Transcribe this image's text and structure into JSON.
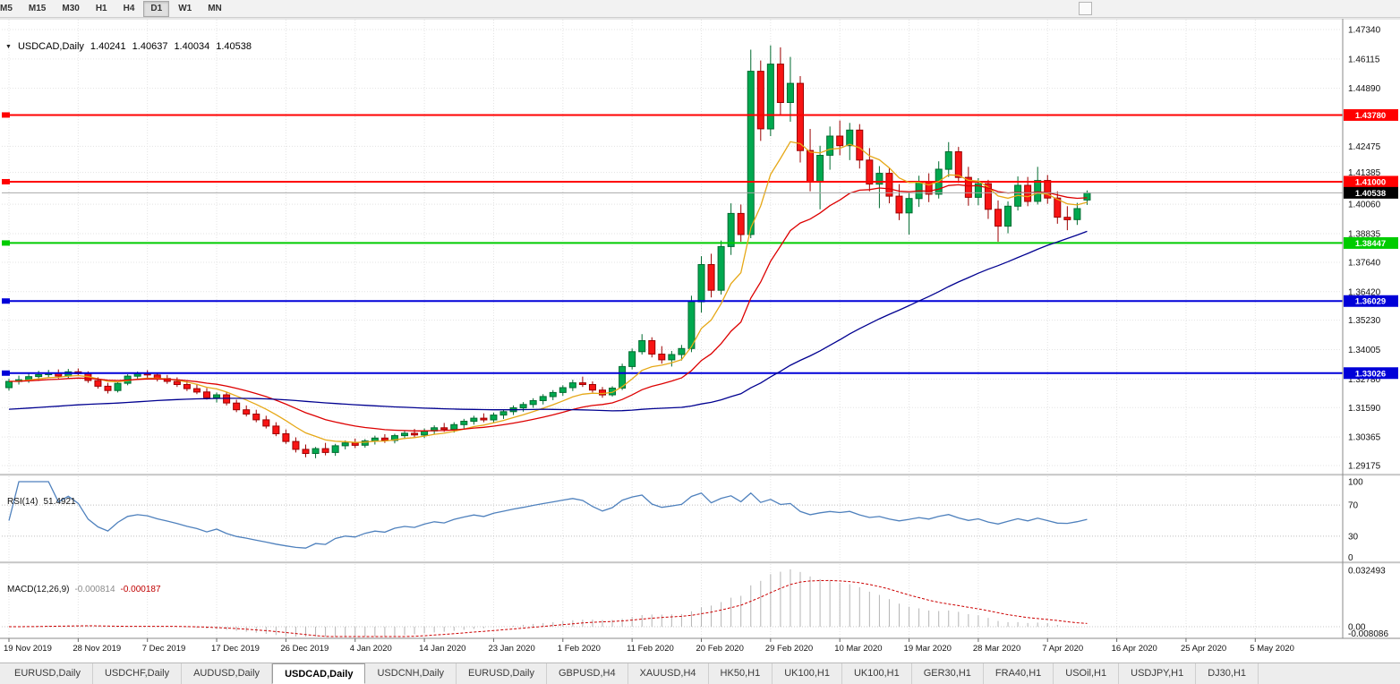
{
  "toolbar": {
    "timeframes": [
      "M5",
      "M15",
      "M30",
      "H1",
      "H4",
      "D1",
      "W1",
      "MN"
    ],
    "active_timeframe": "D1"
  },
  "chart_header": {
    "symbol": "USDCAD,Daily",
    "open": "1.40241",
    "high": "1.40637",
    "low": "1.40034",
    "close": "1.40538"
  },
  "chart_data": {
    "type": "candlestick",
    "symbol": "USDCAD",
    "timeframe": "Daily",
    "x_labels": [
      "19 Nov 2019",
      "28 Nov 2019",
      "7 Dec 2019",
      "17 Dec 2019",
      "26 Dec 2019",
      "4 Jan 2020",
      "14 Jan 2020",
      "23 Jan 2020",
      "1 Feb 2020",
      "11 Feb 2020",
      "20 Feb 2020",
      "29 Feb 2020",
      "10 Mar 2020",
      "19 Mar 2020",
      "28 Mar 2020",
      "7 Apr 2020",
      "16 Apr 2020",
      "25 Apr 2020",
      "5 May 2020"
    ],
    "y_axis_labels": [
      "1.47340",
      "1.46115",
      "1.44890",
      "1.42475",
      "1.41385",
      "1.40060",
      "1.38835",
      "1.37640",
      "1.36420",
      "1.35230",
      "1.34005",
      "1.32780",
      "1.31590",
      "1.30365",
      "1.29175"
    ],
    "price_range": {
      "min": 1.288,
      "max": 1.479
    },
    "colors": {
      "up": "#00a94f",
      "up_border": "#006b30",
      "down": "#f81414",
      "down_border": "#9c0000",
      "grid": "#e3e3e3"
    },
    "candles": [
      [
        1.3242,
        1.328,
        1.323,
        1.3268
      ],
      [
        1.3268,
        1.3292,
        1.3255,
        1.3275
      ],
      [
        1.3275,
        1.3301,
        1.3262,
        1.3288
      ],
      [
        1.3288,
        1.3312,
        1.327,
        1.3296
      ],
      [
        1.3296,
        1.3316,
        1.3282,
        1.3302
      ],
      [
        1.3302,
        1.3318,
        1.328,
        1.329
      ],
      [
        1.329,
        1.332,
        1.3281,
        1.3308
      ],
      [
        1.3308,
        1.3322,
        1.329,
        1.33
      ],
      [
        1.33,
        1.331,
        1.3262,
        1.3272
      ],
      [
        1.3272,
        1.3285,
        1.3238,
        1.3248
      ],
      [
        1.3248,
        1.3262,
        1.3218,
        1.323
      ],
      [
        1.323,
        1.3268,
        1.3222,
        1.326
      ],
      [
        1.326,
        1.3298,
        1.3252,
        1.329
      ],
      [
        1.329,
        1.3309,
        1.3275,
        1.33
      ],
      [
        1.33,
        1.3315,
        1.3282,
        1.3295
      ],
      [
        1.3295,
        1.3305,
        1.3268,
        1.328
      ],
      [
        1.328,
        1.3295,
        1.3258,
        1.3268
      ],
      [
        1.3268,
        1.3285,
        1.3245,
        1.3255
      ],
      [
        1.3255,
        1.327,
        1.3228,
        1.3238
      ],
      [
        1.3238,
        1.3258,
        1.3215,
        1.3224
      ],
      [
        1.3224,
        1.324,
        1.3192,
        1.32
      ],
      [
        1.32,
        1.3222,
        1.318,
        1.3212
      ],
      [
        1.3212,
        1.3225,
        1.3168,
        1.3178
      ],
      [
        1.3178,
        1.3192,
        1.314,
        1.315
      ],
      [
        1.315,
        1.3168,
        1.3122,
        1.3132
      ],
      [
        1.3132,
        1.315,
        1.3098,
        1.3108
      ],
      [
        1.3108,
        1.3125,
        1.3072,
        1.3082
      ],
      [
        1.3082,
        1.3098,
        1.304,
        1.305
      ],
      [
        1.305,
        1.3068,
        1.3008,
        1.3018
      ],
      [
        1.3018,
        1.3035,
        1.2972,
        1.2985
      ],
      [
        1.2985,
        1.3005,
        1.2952,
        1.2968
      ],
      [
        1.2968,
        1.2995,
        1.2948,
        1.2988
      ],
      [
        1.2988,
        1.3012,
        1.296,
        1.2972
      ],
      [
        1.2972,
        1.3008,
        1.2958,
        1.3
      ],
      [
        1.3,
        1.3022,
        1.2985,
        1.3012
      ],
      [
        1.3012,
        1.303,
        1.299,
        1.3002
      ],
      [
        1.3002,
        1.3028,
        1.2992,
        1.302
      ],
      [
        1.302,
        1.3042,
        1.3005,
        1.3032
      ],
      [
        1.3032,
        1.3048,
        1.3012,
        1.3022
      ],
      [
        1.3022,
        1.305,
        1.301,
        1.3042
      ],
      [
        1.3042,
        1.3062,
        1.3028,
        1.3052
      ],
      [
        1.3052,
        1.307,
        1.3035,
        1.3045
      ],
      [
        1.3045,
        1.3072,
        1.3032,
        1.3062
      ],
      [
        1.3062,
        1.3085,
        1.3048,
        1.3075
      ],
      [
        1.3075,
        1.3095,
        1.3058,
        1.3068
      ],
      [
        1.3068,
        1.3098,
        1.3055,
        1.3088
      ],
      [
        1.3088,
        1.3112,
        1.3072,
        1.3102
      ],
      [
        1.3102,
        1.3125,
        1.3088,
        1.3115
      ],
      [
        1.3115,
        1.3135,
        1.3098,
        1.3108
      ],
      [
        1.3108,
        1.3138,
        1.3095,
        1.3128
      ],
      [
        1.3128,
        1.3152,
        1.3112,
        1.3142
      ],
      [
        1.3142,
        1.3168,
        1.3128,
        1.3158
      ],
      [
        1.3158,
        1.3182,
        1.3142,
        1.3172
      ],
      [
        1.3172,
        1.3198,
        1.3158,
        1.3188
      ],
      [
        1.3188,
        1.3215,
        1.3172,
        1.3205
      ],
      [
        1.3205,
        1.3232,
        1.319,
        1.3222
      ],
      [
        1.3222,
        1.3252,
        1.3208,
        1.3242
      ],
      [
        1.3242,
        1.3275,
        1.3228,
        1.3262
      ],
      [
        1.3262,
        1.3288,
        1.3245,
        1.3255
      ],
      [
        1.3255,
        1.3268,
        1.3222,
        1.3232
      ],
      [
        1.3232,
        1.3245,
        1.32,
        1.3212
      ],
      [
        1.3212,
        1.3248,
        1.3205,
        1.324
      ],
      [
        1.324,
        1.3342,
        1.3232,
        1.333
      ],
      [
        1.333,
        1.3405,
        1.3318,
        1.3392
      ],
      [
        1.3392,
        1.3465,
        1.338,
        1.3438
      ],
      [
        1.3438,
        1.3452,
        1.3368,
        1.3382
      ],
      [
        1.3382,
        1.3415,
        1.3342,
        1.3358
      ],
      [
        1.3358,
        1.3395,
        1.333,
        1.338
      ],
      [
        1.338,
        1.342,
        1.3355,
        1.3405
      ],
      [
        1.3405,
        1.3625,
        1.339,
        1.36
      ],
      [
        1.36,
        1.379,
        1.3555,
        1.3755
      ],
      [
        1.3755,
        1.38,
        1.3618,
        1.3648
      ],
      [
        1.3648,
        1.3855,
        1.363,
        1.383
      ],
      [
        1.383,
        1.401,
        1.3795,
        1.3968
      ],
      [
        1.3968,
        1.4005,
        1.385,
        1.388
      ],
      [
        1.388,
        1.465,
        1.3865,
        1.456
      ],
      [
        1.456,
        1.4605,
        1.427,
        1.432
      ],
      [
        1.432,
        1.4668,
        1.429,
        1.459
      ],
      [
        1.459,
        1.466,
        1.438,
        1.443
      ],
      [
        1.443,
        1.462,
        1.435,
        1.451
      ],
      [
        1.451,
        1.454,
        1.418,
        1.423
      ],
      [
        1.423,
        1.432,
        1.406,
        1.41
      ],
      [
        1.41,
        1.425,
        1.3985,
        1.421
      ],
      [
        1.421,
        1.433,
        1.415,
        1.429
      ],
      [
        1.429,
        1.4355,
        1.421,
        1.425
      ],
      [
        1.425,
        1.4345,
        1.419,
        1.4315
      ],
      [
        1.4315,
        1.434,
        1.4155,
        1.419
      ],
      [
        1.419,
        1.424,
        1.406,
        1.409
      ],
      [
        1.409,
        1.4165,
        1.399,
        1.4135
      ],
      [
        1.4135,
        1.4158,
        1.401,
        1.404
      ],
      [
        1.404,
        1.409,
        1.394,
        1.397
      ],
      [
        1.397,
        1.4055,
        1.388,
        1.403
      ],
      [
        1.403,
        1.4125,
        1.3995,
        1.41
      ],
      [
        1.41,
        1.4135,
        1.4015,
        1.4048
      ],
      [
        1.4048,
        1.4185,
        1.403,
        1.4152
      ],
      [
        1.4152,
        1.4265,
        1.412,
        1.4225
      ],
      [
        1.4225,
        1.4245,
        1.4095,
        1.4118
      ],
      [
        1.4118,
        1.4162,
        1.4,
        1.4035
      ],
      [
        1.4035,
        1.4115,
        1.4002,
        1.4092
      ],
      [
        1.4092,
        1.4108,
        1.3945,
        1.3985
      ],
      [
        1.3985,
        1.4022,
        1.385,
        1.3915
      ],
      [
        1.3915,
        1.4018,
        1.3885,
        1.3998
      ],
      [
        1.3998,
        1.4122,
        1.398,
        1.4085
      ],
      [
        1.4085,
        1.412,
        1.3998,
        1.4018
      ],
      [
        1.4018,
        1.4162,
        1.4005,
        1.4105
      ],
      [
        1.4105,
        1.4128,
        1.4008,
        1.4032
      ],
      [
        1.4032,
        1.406,
        1.3925,
        1.3952
      ],
      [
        1.3952,
        1.3998,
        1.3898,
        1.3942
      ],
      [
        1.3942,
        1.4012,
        1.392,
        1.3988
      ],
      [
        1.40241,
        1.40637,
        1.40034,
        1.40538
      ]
    ],
    "moving_averages": [
      {
        "name": "ma-fast",
        "type": "ema",
        "period": 8,
        "color": "#e6a817"
      },
      {
        "name": "ma-mid",
        "type": "ema",
        "period": 20,
        "color": "#dd0000"
      },
      {
        "name": "ma-slow",
        "type": "sma",
        "period": 55,
        "seed": 1.315,
        "color": "#000090"
      }
    ],
    "hlines": [
      {
        "value": 1.4378,
        "label": "1.43780",
        "color": "#ff0000"
      },
      {
        "value": 1.41,
        "label": "1.41000",
        "color": "#ff0000"
      },
      {
        "value": 1.38447,
        "label": "1.38447",
        "color": "#00cc00"
      },
      {
        "value": 1.36029,
        "label": "1.36029",
        "color": "#0000d8"
      },
      {
        "value": 1.33026,
        "label": "1.33026",
        "color": "#0000d8"
      }
    ],
    "current_price": {
      "value": 1.40538,
      "label": "1.40538",
      "color": "#000000"
    },
    "rsi": {
      "label": "RSI(14)",
      "value": "51.4921",
      "period": 14,
      "levels": [
        100,
        70,
        30,
        0
      ],
      "dotted_levels": [
        70,
        30
      ],
      "color": "#4f81bd"
    },
    "macd": {
      "label": "MACD(12,26,9)",
      "value_main": "-0.000814",
      "value_signal": "-0.000187",
      "fast": 12,
      "slow": 26,
      "signal": 9,
      "axis_labels": [
        "0.032493",
        "0.00",
        "-0.008086"
      ],
      "hist_color": "#b4b4b4",
      "signal_color": "#cc0000"
    }
  },
  "tabs": {
    "items": [
      "EURUSD,Daily",
      "USDCHF,Daily",
      "AUDUSD,Daily",
      "USDCAD,Daily",
      "USDCNH,Daily",
      "EURUSD,Daily",
      "GBPUSD,H4",
      "XAUUSD,H4",
      "HK50,H1",
      "UK100,H1",
      "UK100,H1",
      "GER30,H1",
      "FRA40,H1",
      "USOil,H1",
      "USDJPY,H1",
      "DJ30,H1"
    ],
    "active": "USDCAD,Daily",
    "active_index": 3
  }
}
